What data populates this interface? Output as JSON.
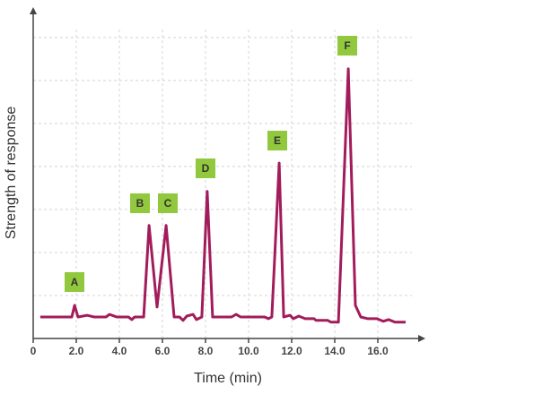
{
  "chart_data": {
    "type": "line",
    "xlabel": "Time (min)",
    "ylabel": "Strength of response",
    "x": [
      0.33,
      1.79,
      1.92,
      2.08,
      2.5,
      2.83,
      3.38,
      3.54,
      3.88,
      4.42,
      4.58,
      4.71,
      5.13,
      5.38,
      5.75,
      6.17,
      6.54,
      6.79,
      6.96,
      7.13,
      7.42,
      7.58,
      7.83,
      8.08,
      8.33,
      9.21,
      9.42,
      9.63,
      10.75,
      10.92,
      11.08,
      11.42,
      11.63,
      11.92,
      12.08,
      12.33,
      12.63,
      13.04,
      13.13,
      13.67,
      13.83,
      14.17,
      14.63,
      14.96,
      15.21,
      15.54,
      15.96,
      16.25,
      16.5,
      16.79,
      17.29
    ],
    "values": [
      0.5,
      0.5,
      0.77,
      0.5,
      0.54,
      0.5,
      0.5,
      0.56,
      0.5,
      0.5,
      0.44,
      0.5,
      0.5,
      2.63,
      0.73,
      2.63,
      0.5,
      0.5,
      0.42,
      0.52,
      0.56,
      0.44,
      0.5,
      3.42,
      0.5,
      0.5,
      0.56,
      0.5,
      0.5,
      0.46,
      0.5,
      4.08,
      0.5,
      0.54,
      0.46,
      0.52,
      0.46,
      0.46,
      0.42,
      0.42,
      0.38,
      0.38,
      6.27,
      0.77,
      0.5,
      0.46,
      0.46,
      0.4,
      0.44,
      0.38,
      0.38
    ],
    "color": "#a21c5b",
    "annotations": [
      "A",
      "B",
      "C",
      "D",
      "E",
      "F"
    ],
    "annotation_color": "#92c83e",
    "xlim": [
      0,
      18
    ],
    "ylim": [
      0,
      7.6
    ],
    "xticks": [
      0,
      {
        "value": 2,
        "label": "2.0"
      },
      {
        "value": 4,
        "label": "4.0"
      },
      {
        "value": 6,
        "label": "6.0"
      },
      {
        "value": 8,
        "label": "8.0"
      },
      {
        "value": 10,
        "label": "10.0"
      },
      {
        "value": 12,
        "label": "12.0"
      },
      {
        "value": 14,
        "label": "14.0"
      },
      {
        "value": 16,
        "label": "16.0"
      }
    ],
    "ygrid": [
      1,
      2,
      3,
      4,
      5,
      6,
      7
    ],
    "grid": true
  }
}
